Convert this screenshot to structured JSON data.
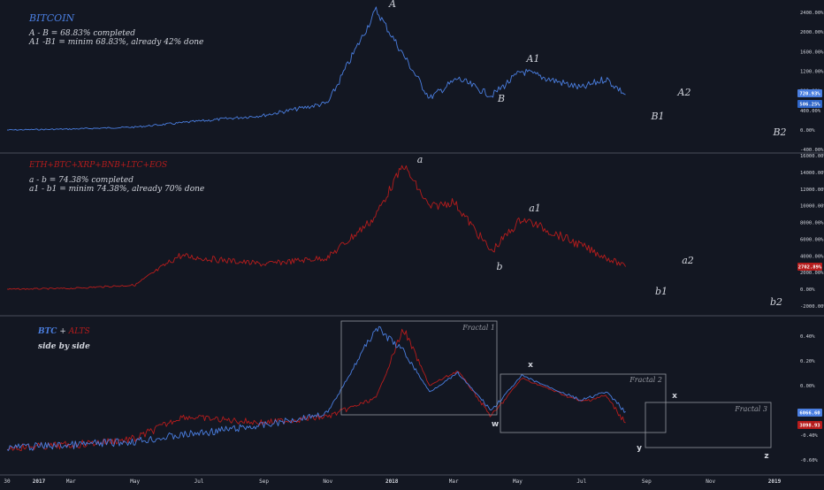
{
  "panels": [
    {
      "id": "btc",
      "title": "BITCOIN",
      "title_color": "#4a7ee0",
      "notes": [
        "A - B = 68.83% completed",
        "A1 -B1 = minim 68.83%, already 42% done"
      ],
      "y_ticks": [
        "2400.00%",
        "2000.00%",
        "1600.00%",
        "1200.00%",
        "800.00%",
        "400.00%",
        "0.00%",
        "-400.00%"
      ],
      "price_tags": [
        {
          "text": "720.93%",
          "color": "#4a7ee0"
        },
        {
          "text": "506.25%",
          "color": "#2f66c9"
        }
      ],
      "wave_labels": [
        "A",
        "B",
        "A1",
        "B1",
        "A2",
        "B2"
      ]
    },
    {
      "id": "eth",
      "title": "ETH+BTC+XRP+BNB+LTC+EOS",
      "title_color": "#b71c1c",
      "notes": [
        "a - b = 74.38% completed",
        "a1 - b1 = minim 74.38%, already 70% done"
      ],
      "y_ticks": [
        "16000.00%",
        "14000.00%",
        "12000.00%",
        "10000.00%",
        "8000.00%",
        "6000.00%",
        "4000.00%",
        "2000.00%",
        "0.00%",
        "-2000.00%"
      ],
      "price_tags": [
        {
          "text": "2702.89%",
          "color": "#b71c1c"
        }
      ],
      "wave_labels": [
        "a",
        "b",
        "a1",
        "b1",
        "a2",
        "b2"
      ]
    },
    {
      "id": "compare",
      "title_parts": [
        {
          "text": "BTC",
          "color": "#4a7ee0"
        },
        {
          "text": " + ",
          "color": "#d1d4dc"
        },
        {
          "text": "ALTS",
          "color": "#b71c1c"
        }
      ],
      "subtitle": "side by side",
      "y_ticks": [
        "0.40%",
        "0.20%",
        "0.00%",
        "-0.20%",
        "-0.40%",
        "-0.60%"
      ],
      "price_tags": [
        {
          "text": "6066.60",
          "color": "#4a7ee0"
        },
        {
          "text": "3898.93",
          "color": "#b71c1c"
        }
      ],
      "wave_labels": [
        "w",
        "x",
        "y",
        "x",
        "z"
      ],
      "fractals": [
        "Fractal 1",
        "Fractal 2",
        "Fractal 3"
      ]
    }
  ],
  "x_axis": {
    "ticks": [
      "30",
      "2017",
      "Mar",
      "May",
      "Jul",
      "Sep",
      "Nov",
      "2018",
      "Mar",
      "May",
      "Jul",
      "Sep",
      "Nov",
      "2019"
    ],
    "bold": [
      "2017",
      "2018",
      "2019"
    ]
  },
  "colors": {
    "background": "#131722",
    "btc": "#4a7ee0",
    "alts": "#b71c1c",
    "text": "#d1d4dc",
    "grid": "#2a2e39"
  },
  "chart_data": [
    {
      "type": "line",
      "title": "BITCOIN",
      "x": [
        "2016-12-30",
        "2017-03-01",
        "2017-05-01",
        "2017-07-01",
        "2017-09-01",
        "2017-11-01",
        "2017-12-17",
        "2018-02-06",
        "2018-03-05",
        "2018-04-06",
        "2018-05-05",
        "2018-07-01",
        "2018-07-24",
        "2018-08-12"
      ],
      "series": [
        {
          "name": "BITCOIN",
          "values": [
            0,
            20,
            60,
            180,
            300,
            550,
            2450,
            650,
            1050,
            700,
            1200,
            850,
            1050,
            720.93
          ]
        }
      ],
      "ylim": [
        -500,
        2700
      ]
    },
    {
      "type": "line",
      "title": "ETH+BTC+XRP+BNB+LTC+EOS",
      "x": [
        "2016-12-30",
        "2017-03-01",
        "2017-05-01",
        "2017-06-12",
        "2017-09-01",
        "2017-11-01",
        "2017-12-15",
        "2018-01-12",
        "2018-02-06",
        "2018-03-01",
        "2018-04-06",
        "2018-05-05",
        "2018-07-01",
        "2018-08-12"
      ],
      "series": [
        {
          "name": "ETH+BTC+XRP+BNB+LTC+EOS",
          "values": [
            0,
            100,
            500,
            4000,
            3000,
            3800,
            8500,
            14900,
            9800,
            10500,
            4500,
            8500,
            5200,
            2702.89
          ]
        }
      ],
      "ylim": [
        -2500,
        16500
      ]
    },
    {
      "type": "line",
      "title": "BTC + ALTS",
      "x": [
        "2016-12-30",
        "2017-03-01",
        "2017-05-01",
        "2017-06-15",
        "2017-09-01",
        "2017-11-01",
        "2017-12-17",
        "2018-01-12",
        "2018-02-06",
        "2018-03-05",
        "2018-04-06",
        "2018-05-05",
        "2018-07-01",
        "2018-07-24",
        "2018-08-12"
      ],
      "series": [
        {
          "name": "BTC",
          "values": [
            -0.5,
            -0.48,
            -0.45,
            -0.4,
            -0.32,
            -0.22,
            0.47,
            0.28,
            -0.05,
            0.1,
            -0.2,
            0.08,
            -0.12,
            -0.05,
            -0.21
          ]
        },
        {
          "name": "ALTS",
          "values": [
            -0.5,
            -0.48,
            -0.43,
            -0.25,
            -0.3,
            -0.25,
            -0.1,
            0.46,
            0.0,
            0.12,
            -0.25,
            0.06,
            -0.13,
            -0.08,
            -0.3
          ]
        }
      ],
      "ylim": [
        -0.65,
        0.45
      ]
    }
  ]
}
